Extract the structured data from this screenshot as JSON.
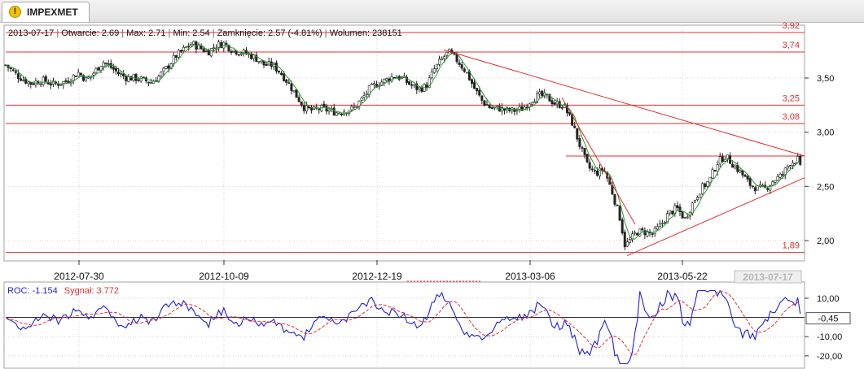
{
  "tab": {
    "label": "IMPEXMET",
    "icon": "warning-icon"
  },
  "header": {
    "date": "2013-07-17",
    "open": "Otwarcie: 2.69",
    "max": "Max: 2.71",
    "min": "Min: 2.54",
    "close": "Zamknięcie: 2.57 (-4.81%)",
    "volume": "Wolumen: 238151"
  },
  "chart_data": [
    {
      "type": "candlestick",
      "title": "",
      "xlabel": "",
      "ylabel": "",
      "ylim": [
        1.82,
        3.98
      ],
      "y_ticks": [
        "3,50",
        "3,00",
        "2,50",
        "2,00"
      ],
      "y_tick_values": [
        3.5,
        3.0,
        2.5,
        2.0
      ],
      "x_ticks": [
        "2012-07-30",
        "2012-10-09",
        "2012-12-19",
        "2013-03-06",
        "2013-05-22"
      ],
      "cursor_date": "2013-07-17",
      "horizontal_levels": [
        {
          "label": "3,92",
          "value": 3.92
        },
        {
          "label": "3,74",
          "value": 3.74
        },
        {
          "label": "3,25",
          "value": 3.25
        },
        {
          "label": "3,08",
          "value": 3.08
        },
        {
          "label": "1,89",
          "value": 1.89
        }
      ],
      "resistance_2013_06": 2.78,
      "price_anchors": [
        [
          0,
          3.62
        ],
        [
          15,
          3.52
        ],
        [
          30,
          3.45
        ],
        [
          45,
          3.48
        ],
        [
          60,
          3.44
        ],
        [
          75,
          3.47
        ],
        [
          90,
          3.55
        ],
        [
          100,
          3.48
        ],
        [
          110,
          3.56
        ],
        [
          120,
          3.65
        ],
        [
          130,
          3.6
        ],
        [
          140,
          3.54
        ],
        [
          150,
          3.5
        ],
        [
          160,
          3.5
        ],
        [
          170,
          3.48
        ],
        [
          180,
          3.46
        ],
        [
          190,
          3.52
        ],
        [
          200,
          3.6
        ],
        [
          210,
          3.7
        ],
        [
          220,
          3.76
        ],
        [
          230,
          3.82
        ],
        [
          240,
          3.78
        ],
        [
          250,
          3.74
        ],
        [
          260,
          3.8
        ],
        [
          270,
          3.82
        ],
        [
          280,
          3.76
        ],
        [
          290,
          3.74
        ],
        [
          300,
          3.72
        ],
        [
          310,
          3.68
        ],
        [
          320,
          3.62
        ],
        [
          330,
          3.62
        ],
        [
          340,
          3.55
        ],
        [
          350,
          3.45
        ],
        [
          360,
          3.33
        ],
        [
          370,
          3.22
        ],
        [
          380,
          3.2
        ],
        [
          390,
          3.22
        ],
        [
          400,
          3.2
        ],
        [
          410,
          3.18
        ],
        [
          420,
          3.2
        ],
        [
          430,
          3.22
        ],
        [
          440,
          3.3
        ],
        [
          450,
          3.4
        ],
        [
          460,
          3.45
        ],
        [
          470,
          3.48
        ],
        [
          480,
          3.52
        ],
        [
          490,
          3.5
        ],
        [
          500,
          3.44
        ],
        [
          510,
          3.4
        ],
        [
          520,
          3.42
        ],
        [
          530,
          3.58
        ],
        [
          540,
          3.68
        ],
        [
          548,
          3.74
        ],
        [
          560,
          3.65
        ],
        [
          570,
          3.55
        ],
        [
          580,
          3.4
        ],
        [
          590,
          3.28
        ],
        [
          600,
          3.22
        ],
        [
          610,
          3.22
        ],
        [
          620,
          3.2
        ],
        [
          630,
          3.2
        ],
        [
          640,
          3.22
        ],
        [
          650,
          3.3
        ],
        [
          660,
          3.34
        ],
        [
          670,
          3.32
        ],
        [
          680,
          3.26
        ],
        [
          690,
          3.25
        ],
        [
          700,
          3.1
        ],
        [
          710,
          2.88
        ],
        [
          720,
          2.68
        ],
        [
          730,
          2.62
        ],
        [
          740,
          2.66
        ],
        [
          750,
          2.45
        ],
        [
          760,
          2.2
        ],
        [
          766,
          1.95
        ],
        [
          772,
          2.0
        ],
        [
          780,
          2.08
        ],
        [
          790,
          2.08
        ],
        [
          800,
          2.06
        ],
        [
          810,
          2.14
        ],
        [
          820,
          2.25
        ],
        [
          830,
          2.3
        ],
        [
          840,
          2.2
        ],
        [
          850,
          2.35
        ],
        [
          860,
          2.48
        ],
        [
          870,
          2.55
        ],
        [
          880,
          2.72
        ],
        [
          890,
          2.78
        ],
        [
          900,
          2.7
        ],
        [
          910,
          2.62
        ],
        [
          920,
          2.52
        ],
        [
          930,
          2.48
        ],
        [
          940,
          2.48
        ],
        [
          950,
          2.56
        ],
        [
          960,
          2.6
        ],
        [
          970,
          2.72
        ],
        [
          980,
          2.75
        ],
        [
          986,
          2.57
        ]
      ]
    },
    {
      "type": "line",
      "title": "",
      "ylim": [
        -26,
        18
      ],
      "y_ticks": [
        "10,00",
        "-10,00",
        "-20,00"
      ],
      "y_tick_values": [
        10,
        -10,
        -20
      ],
      "current_label": "-0,45",
      "current_value": -0.45,
      "series": [
        {
          "name": "ROC: -1.154",
          "color": "#1f1fd6"
        },
        {
          "name": "Sygnał: 3.772",
          "color": "#e03030"
        }
      ]
    }
  ],
  "colors": {
    "level": "#e03030",
    "trend": "#e03030",
    "ma": "#2e9b2e",
    "candle": "#222222",
    "roc": "#1f1fd6",
    "signal": "#e03030",
    "grid": "#d4d4d4"
  }
}
